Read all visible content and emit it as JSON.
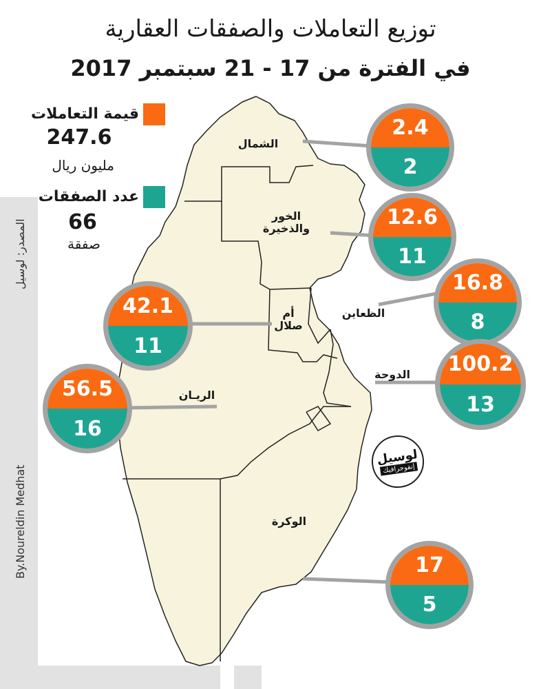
{
  "title": {
    "line1": "توزيع التعاملات والصفقات العقارية",
    "line2": "في الفترة من 17 - 21 سبتمبر 2017"
  },
  "legend": {
    "value": {
      "label": "قيمة التعاملات",
      "total": "247.6",
      "unit": "مليون ريال",
      "color": "#fa6a12"
    },
    "count": {
      "label": "عدد الصفقات",
      "total": "66",
      "unit": "صفقة",
      "color": "#1ea592"
    }
  },
  "source": "المصدر: لوسيل",
  "credit": "By.Noureldin Medhat",
  "logo": {
    "name": "لوسيل",
    "tag": "إنفوجرافيك"
  },
  "regions": [
    {
      "id": "shamal",
      "name": "الشمال",
      "value": "2.4",
      "deals": "2"
    },
    {
      "id": "khor",
      "name": "الخور والذخيرة",
      "value": "12.6",
      "deals": "11"
    },
    {
      "id": "daayen",
      "name": "الظعاين",
      "value": "16.8",
      "deals": "8"
    },
    {
      "id": "doha",
      "name": "الدوحة",
      "value": "100.2",
      "deals": "13"
    },
    {
      "id": "ummsalal",
      "name": "أم صلال",
      "value": "42.1",
      "deals": "11"
    },
    {
      "id": "rayyan",
      "name": "الريـان",
      "value": "56.5",
      "deals": "16"
    },
    {
      "id": "wakra",
      "name": "الوكرة",
      "value": "17",
      "deals": "5"
    }
  ]
}
